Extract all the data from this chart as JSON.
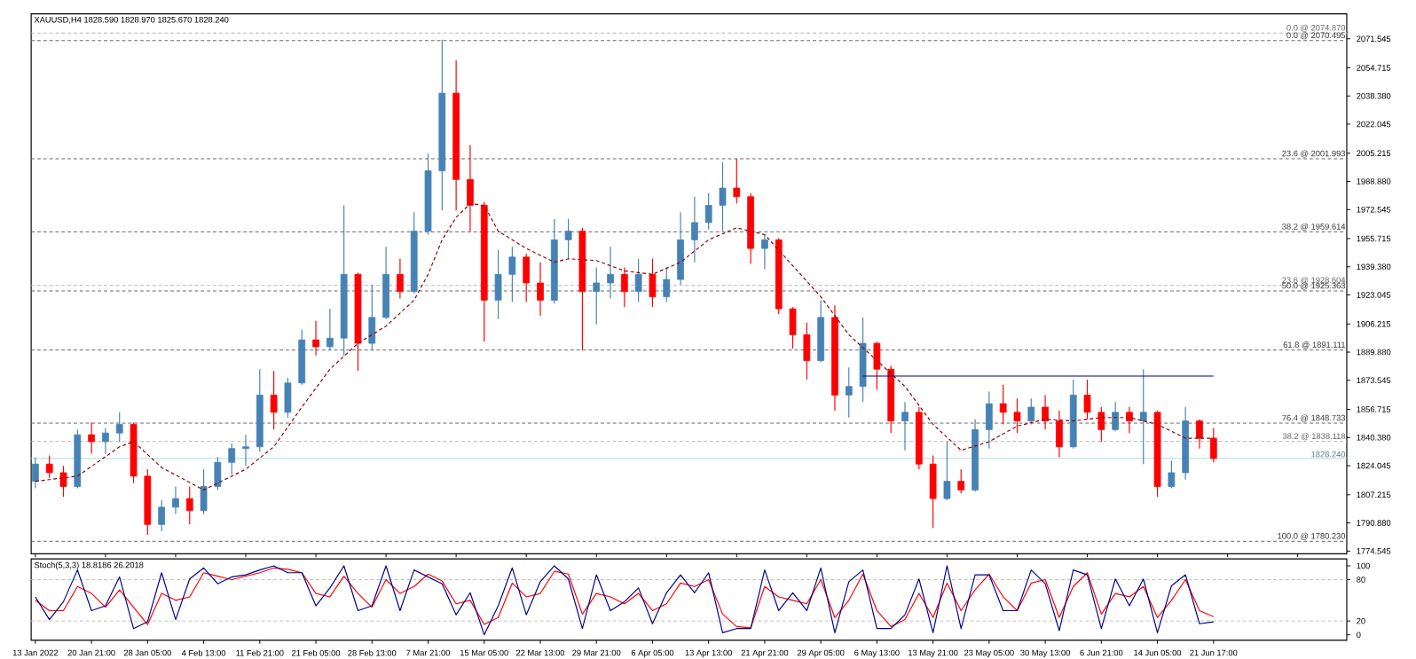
{
  "chart_data": [
    {
      "type": "candlestick",
      "title": "XAUUSD,H4  1828.590 1828.970 1825.670 1828.240",
      "categories": [
        null,
        null,
        null,
        null,
        null,
        null,
        null,
        null,
        null,
        null,
        null,
        null,
        null,
        null,
        null,
        null,
        null,
        null,
        null,
        null,
        null,
        null,
        null,
        null,
        null,
        null,
        null,
        null,
        null,
        null,
        null,
        null,
        null,
        null,
        null,
        null,
        null,
        null,
        null,
        null,
        null,
        null,
        null,
        null,
        null,
        null,
        null,
        null,
        null,
        null,
        null,
        null,
        null,
        null,
        null,
        null,
        null,
        null,
        null,
        null,
        null,
        null,
        null,
        null,
        null,
        null,
        null,
        null,
        null,
        null,
        null,
        null,
        null,
        null,
        null,
        null,
        null,
        null,
        null,
        null,
        null,
        null,
        null,
        null,
        null
      ],
      "ohlc": [
        [
          1815,
          1829,
          1811,
          1825
        ],
        [
          1825,
          1830,
          1817,
          1820
        ],
        [
          1820,
          1824,
          1806,
          1812
        ],
        [
          1812,
          1845,
          1811,
          1842
        ],
        [
          1842,
          1849,
          1831,
          1838
        ],
        [
          1838,
          1846,
          1831,
          1843
        ],
        [
          1843,
          1855,
          1838,
          1848
        ],
        [
          1848,
          1849,
          1814,
          1818
        ],
        [
          1818,
          1822,
          1784,
          1790
        ],
        [
          1790,
          1804,
          1786,
          1800
        ],
        [
          1800,
          1812,
          1796,
          1805
        ],
        [
          1805,
          1812,
          1790,
          1798
        ],
        [
          1798,
          1822,
          1796,
          1812
        ],
        [
          1812,
          1829,
          1810,
          1826
        ],
        [
          1826,
          1837,
          1819,
          1834
        ],
        [
          1834,
          1842,
          1824,
          1835
        ],
        [
          1835,
          1880,
          1832,
          1865
        ],
        [
          1865,
          1879,
          1845,
          1855
        ],
        [
          1855,
          1875,
          1852,
          1872
        ],
        [
          1872,
          1903,
          1871,
          1897
        ],
        [
          1897,
          1908,
          1888,
          1893
        ],
        [
          1893,
          1915,
          1891,
          1898
        ],
        [
          1898,
          1975,
          1888,
          1935
        ],
        [
          1935,
          1936,
          1879,
          1895
        ],
        [
          1895,
          1929,
          1891,
          1910
        ],
        [
          1910,
          1951,
          1909,
          1935
        ],
        [
          1935,
          1944,
          1921,
          1925
        ],
        [
          1925,
          1971,
          1924,
          1960
        ],
        [
          1960,
          2005,
          1958,
          1995
        ],
        [
          1995,
          2071,
          1972,
          2040
        ],
        [
          2040,
          2059,
          1972,
          1990
        ],
        [
          1990,
          2010,
          1960,
          1975
        ],
        [
          1975,
          1977,
          1896,
          1920
        ],
        [
          1920,
          1949,
          1909,
          1935
        ],
        [
          1935,
          1951,
          1919,
          1945
        ],
        [
          1945,
          1947,
          1919,
          1930
        ],
        [
          1930,
          1942,
          1911,
          1920
        ],
        [
          1920,
          1967,
          1918,
          1955
        ],
        [
          1955,
          1967,
          1944,
          1960
        ],
        [
          1960,
          1962,
          1891,
          1925
        ],
        [
          1925,
          1939,
          1906,
          1930
        ],
        [
          1930,
          1951,
          1921,
          1935
        ],
        [
          1935,
          1939,
          1916,
          1925
        ],
        [
          1925,
          1944,
          1919,
          1935
        ],
        [
          1935,
          1944,
          1916,
          1922
        ],
        [
          1922,
          1939,
          1919,
          1932
        ],
        [
          1932,
          1971,
          1929,
          1955
        ],
        [
          1955,
          1980,
          1942,
          1965
        ],
        [
          1965,
          1982,
          1961,
          1975
        ],
        [
          1975,
          2000,
          1960,
          1985
        ],
        [
          1985,
          2002,
          1976,
          1980
        ],
        [
          1980,
          1982,
          1941,
          1950
        ],
        [
          1950,
          1958,
          1938,
          1955
        ],
        [
          1955,
          1956,
          1912,
          1915
        ],
        [
          1915,
          1916,
          1892,
          1900
        ],
        [
          1900,
          1907,
          1874,
          1885
        ],
        [
          1885,
          1920,
          1884,
          1910
        ],
        [
          1910,
          1917,
          1856,
          1865
        ],
        [
          1865,
          1881,
          1852,
          1870
        ],
        [
          1870,
          1910,
          1861,
          1895
        ],
        [
          1895,
          1896,
          1868,
          1880
        ],
        [
          1880,
          1882,
          1843,
          1850
        ],
        [
          1850,
          1861,
          1833,
          1855
        ],
        [
          1855,
          1858,
          1822,
          1825
        ],
        [
          1825,
          1830,
          1788,
          1805
        ],
        [
          1805,
          1838,
          1804,
          1815
        ],
        [
          1815,
          1822,
          1808,
          1810
        ],
        [
          1810,
          1851,
          1809,
          1845
        ],
        [
          1845,
          1867,
          1834,
          1860
        ],
        [
          1860,
          1871,
          1848,
          1855
        ],
        [
          1855,
          1863,
          1843,
          1850
        ],
        [
          1850,
          1863,
          1848,
          1858
        ],
        [
          1858,
          1865,
          1845,
          1850
        ],
        [
          1850,
          1856,
          1829,
          1835
        ],
        [
          1835,
          1874,
          1834,
          1865
        ],
        [
          1865,
          1874,
          1851,
          1855
        ],
        [
          1855,
          1858,
          1838,
          1845
        ],
        [
          1845,
          1861,
          1844,
          1855
        ],
        [
          1855,
          1858,
          1843,
          1850
        ],
        [
          1850,
          1880,
          1825,
          1855
        ],
        [
          1855,
          1856,
          1806,
          1812
        ],
        [
          1812,
          1827,
          1811,
          1820
        ],
        [
          1820,
          1858,
          1816,
          1850
        ],
        [
          1850,
          1851,
          1834,
          1840
        ],
        [
          1840,
          1846,
          1826,
          1828.24
        ]
      ],
      "colors": [
        "#4682b4",
        "#ff0000",
        "#ff0000",
        "#4682b4",
        "#ff0000",
        "#4682b4",
        "#4682b4",
        "#ff0000",
        "#ff0000",
        "#4682b4",
        "#4682b4",
        "#ff0000",
        "#4682b4",
        "#4682b4",
        "#4682b4",
        "#4682b4",
        "#4682b4",
        "#ff0000",
        "#4682b4",
        "#4682b4",
        "#ff0000",
        "#4682b4",
        "#4682b4",
        "#ff0000",
        "#4682b4",
        "#4682b4",
        "#ff0000",
        "#4682b4",
        "#4682b4",
        "#4682b4",
        "#ff0000",
        "#ff0000",
        "#ff0000",
        "#4682b4",
        "#4682b4",
        "#ff0000",
        "#ff0000",
        "#4682b4",
        "#4682b4",
        "#ff0000",
        "#4682b4",
        "#4682b4",
        "#ff0000",
        "#4682b4",
        "#ff0000",
        "#4682b4",
        "#4682b4",
        "#4682b4",
        "#4682b4",
        "#4682b4",
        "#ff0000",
        "#ff0000",
        "#4682b4",
        "#ff0000",
        "#ff0000",
        "#ff0000",
        "#4682b4",
        "#ff0000",
        "#4682b4",
        "#4682b4",
        "#ff0000",
        "#ff0000",
        "#4682b4",
        "#ff0000",
        "#ff0000",
        "#4682b4",
        "#ff0000",
        "#4682b4",
        "#4682b4",
        "#ff0000",
        "#ff0000",
        "#4682b4",
        "#ff0000",
        "#ff0000",
        "#4682b4",
        "#ff0000",
        "#ff0000",
        "#4682b4",
        "#ff0000",
        "#4682b4",
        "#ff0000",
        "#4682b4",
        "#4682b4",
        "#ff0000",
        "#ff0000"
      ],
      "series": [
        {
          "type": "line",
          "color": "#8b0000",
          "line_style": "dashed",
          "values": [
            1815,
            null,
            null,
            1818,
            null,
            null,
            1835,
            1838,
            null,
            1823,
            null,
            null,
            1810,
            null,
            null,
            1822,
            null,
            1835,
            null,
            1858,
            null,
            1880,
            null,
            1895,
            null,
            1905,
            null,
            1920,
            1935,
            1955,
            1968,
            1976,
            1975,
            1960,
            null,
            1950,
            null,
            1942,
            1944,
            null,
            1943,
            null,
            1937,
            null,
            1935,
            null,
            1942,
            null,
            1955,
            null,
            1962,
            null,
            1958,
            null,
            1940,
            null,
            1922,
            null,
            1900,
            null,
            1885,
            null,
            1870,
            null,
            1848,
            null,
            1833,
            null,
            1838,
            null,
            1847,
            null,
            1851,
            null,
            1850,
            null,
            1852,
            null,
            1852,
            null,
            1848,
            null,
            1840,
            null,
            1840
          ]
        },
        {
          "type": "line",
          "color": "#00008b",
          "values": [
            null,
            null,
            null,
            null,
            null,
            null,
            null,
            null,
            null,
            null,
            null,
            null,
            null,
            null,
            null,
            null,
            null,
            null,
            null,
            null,
            null,
            null,
            null,
            null,
            null,
            null,
            null,
            null,
            null,
            null,
            null,
            null,
            null,
            null,
            null,
            null,
            null,
            null,
            null,
            null,
            null,
            null,
            null,
            null,
            null,
            null,
            null,
            null,
            null,
            null,
            null,
            null,
            null,
            null,
            null,
            null,
            null,
            null,
            null,
            1876,
            null,
            null,
            null,
            null,
            null,
            null,
            null,
            null,
            null,
            null,
            null,
            null,
            null,
            null,
            null,
            null,
            null,
            null,
            null,
            null,
            null,
            null,
            null,
            null,
            1876
          ]
        }
      ],
      "ylim": [
        1773,
        2086
      ],
      "yticks": [
        {
          "value": 2071.545,
          "label": "2071.545"
        },
        {
          "value": 2054.715,
          "label": "2054.715"
        },
        {
          "value": 2038.38,
          "label": "2038.380"
        },
        {
          "value": 2022.045,
          "label": "2022.045"
        },
        {
          "value": 2005.215,
          "label": "2005.215"
        },
        {
          "value": 1988.88,
          "label": "1988.880"
        },
        {
          "value": 1972.545,
          "label": "1972.545"
        },
        {
          "value": 1955.715,
          "label": "1955.715"
        },
        {
          "value": 1939.38,
          "label": "1939.380"
        },
        {
          "value": 1923.045,
          "label": "1923.045"
        },
        {
          "value": 1906.215,
          "label": "1906.215"
        },
        {
          "value": 1889.88,
          "label": "1889.880"
        },
        {
          "value": 1873.545,
          "label": "1873.545"
        },
        {
          "value": 1856.715,
          "label": "1856.715"
        },
        {
          "value": 1840.38,
          "label": "1840.380"
        },
        {
          "value": 1824.045,
          "label": "1824.045"
        },
        {
          "value": 1807.215,
          "label": "1807.215"
        },
        {
          "value": 1790.88,
          "label": "1790.880"
        },
        {
          "value": 1774.545,
          "label": "1774.545"
        }
      ],
      "ref_lines": [
        {
          "axis": "y",
          "value": 2074.87,
          "label": "0.0 @ 2074.870",
          "color": "#b4b4b4",
          "line_style": "dashed"
        },
        {
          "axis": "y",
          "value": 2070.495,
          "label": "0.0 @ 2070.495",
          "color": "#646464",
          "line_style": "dashed"
        },
        {
          "axis": "y",
          "value": 2001.993,
          "label": "23.6 @ 2001.993",
          "color": "#646464",
          "line_style": "dashed"
        },
        {
          "axis": "y",
          "value": 1959.614,
          "label": "38.2 @ 1959.614",
          "color": "#646464",
          "line_style": "dashed"
        },
        {
          "axis": "y",
          "value": 1928.604,
          "label": "23.6 @ 1928.604",
          "color": "#b4b4b4",
          "line_style": "dashed"
        },
        {
          "axis": "y",
          "value": 1925.363,
          "label": "50.0 @ 1925.363",
          "color": "#646464",
          "line_style": "dashed"
        },
        {
          "axis": "y",
          "value": 1891.111,
          "label": "61.8 @ 1891.111",
          "color": "#646464",
          "line_style": "dashed"
        },
        {
          "axis": "y",
          "value": 1848.733,
          "label": "76.4 @ 1848.733",
          "color": "#646464",
          "line_style": "dashed"
        },
        {
          "axis": "y",
          "value": 1838.118,
          "label": "38.2 @ 1838.118",
          "color": "#b4b4b4",
          "line_style": "dashed"
        },
        {
          "axis": "y",
          "value": 1828.24,
          "label": "1828.240",
          "color": "#a8dcdc",
          "line_style": "solid"
        },
        {
          "axis": "y",
          "value": 1780.23,
          "label": "100.0 @ 1780.230",
          "color": "#646464",
          "line_style": "dashed"
        }
      ]
    },
    {
      "type": "line",
      "title": "Stoch(5,3,3) 18.8186 26.2018",
      "categories": [
        "13 Jan 2022",
        null,
        null,
        null,
        "20 Jan 21:00",
        null,
        null,
        null,
        "28 Jan 05:00",
        null,
        null,
        null,
        "4 Feb 13:00",
        null,
        null,
        null,
        "11 Feb 21:00",
        null,
        null,
        null,
        "21 Feb 05:00",
        null,
        null,
        null,
        "28 Feb 13:00",
        null,
        null,
        null,
        "7 Mar 21:00",
        null,
        null,
        null,
        "15 Mar 05:00",
        null,
        null,
        null,
        "22 Mar 13:00",
        null,
        null,
        null,
        "29 Mar 21:00",
        null,
        null,
        null,
        "6 Apr 05:00",
        null,
        null,
        null,
        "13 Apr 13:00",
        null,
        null,
        null,
        "21 Apr 21:00",
        null,
        null,
        null,
        "29 Apr 05:00",
        null,
        null,
        null,
        "6 May 13:00",
        null,
        null,
        null,
        "13 May 21:00",
        null,
        null,
        null,
        "23 May 05:00",
        null,
        null,
        null,
        "30 May 13:00",
        null,
        null,
        null,
        "6 Jun 21:00",
        null,
        null,
        null,
        "14 Jun 05:00",
        null,
        null,
        null,
        "21 Jun 17:00"
      ],
      "series": [
        {
          "color": "#ff0000",
          "values": [
            50,
            35,
            35,
            70,
            60,
            40,
            65,
            40,
            15,
            60,
            50,
            55,
            90,
            85,
            80,
            85,
            90,
            97,
            95,
            90,
            60,
            55,
            85,
            60,
            40,
            80,
            60,
            70,
            88,
            78,
            45,
            50,
            15,
            25,
            75,
            55,
            60,
            92,
            88,
            30,
            60,
            55,
            45,
            60,
            35,
            45,
            75,
            70,
            80,
            30,
            12,
            10,
            70,
            55,
            50,
            45,
            80,
            25,
            50,
            88,
            35,
            12,
            22,
            60,
            25,
            75,
            35,
            65,
            88,
            55,
            35,
            75,
            80,
            25,
            70,
            90,
            30,
            60,
            55,
            70,
            25,
            50,
            80,
            35,
            26.2018
          ]
        },
        {
          "color": "#00008b",
          "values": [
            55,
            22,
            48,
            94,
            35,
            42,
            84,
            9,
            19,
            90,
            22,
            81,
            97,
            74,
            84,
            87,
            94,
            100,
            90,
            90,
            42,
            68,
            100,
            35,
            42,
            100,
            35,
            94,
            84,
            74,
            29,
            61,
            0,
            42,
            97,
            29,
            77,
            100,
            81,
            9,
            87,
            35,
            48,
            68,
            16,
            61,
            87,
            61,
            90,
            3,
            9,
            9,
            94,
            35,
            61,
            35,
            97,
            3,
            77,
            94,
            9,
            9,
            29,
            81,
            3,
            100,
            9,
            87,
            87,
            35,
            35,
            94,
            74,
            6,
            94,
            87,
            9,
            81,
            42,
            81,
            3,
            71,
            87,
            16,
            18.8186
          ]
        }
      ],
      "ylim": [
        -8,
        110
      ],
      "yticks": [
        0,
        20,
        80,
        100
      ],
      "ref_lines": [
        {
          "axis": "y",
          "value": 80,
          "color": "#c0c0c0",
          "line_style": "dashed"
        },
        {
          "axis": "y",
          "value": 20,
          "color": "#c0c0c0",
          "line_style": "dashed"
        }
      ]
    }
  ]
}
